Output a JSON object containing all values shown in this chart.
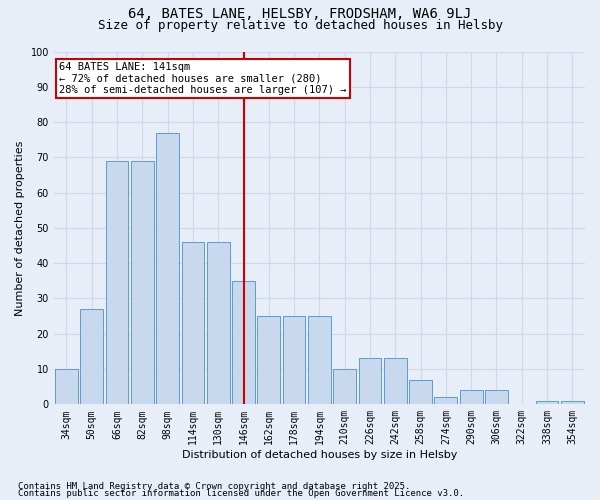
{
  "title": "64, BATES LANE, HELSBY, FRODSHAM, WA6 9LJ",
  "subtitle": "Size of property relative to detached houses in Helsby",
  "xlabel": "Distribution of detached houses by size in Helsby",
  "ylabel": "Number of detached properties",
  "categories": [
    "34sqm",
    "50sqm",
    "66sqm",
    "82sqm",
    "98sqm",
    "114sqm",
    "130sqm",
    "146sqm",
    "162sqm",
    "178sqm",
    "194sqm",
    "210sqm",
    "226sqm",
    "242sqm",
    "258sqm",
    "274sqm",
    "290sqm",
    "306sqm",
    "322sqm",
    "338sqm",
    "354sqm"
  ],
  "values": [
    10,
    27,
    69,
    69,
    77,
    46,
    46,
    35,
    25,
    25,
    25,
    10,
    13,
    13,
    7,
    2,
    4,
    4,
    0,
    1,
    1
  ],
  "bar_color": "#c9d9ed",
  "bar_edge_color": "#5b9bd5",
  "vline_index": 7,
  "annotation_line_label": "64 BATES LANE: 141sqm",
  "annotation_text1": "← 72% of detached houses are smaller (280)",
  "annotation_text2": "28% of semi-detached houses are larger (107) →",
  "annotation_box_color": "#ffffff",
  "annotation_box_edge": "#cc0000",
  "vline_color": "#cc0000",
  "grid_color": "#d0d8e8",
  "background_color": "#e8eef8",
  "ylim": [
    0,
    100
  ],
  "yticks": [
    0,
    10,
    20,
    30,
    40,
    50,
    60,
    70,
    80,
    90,
    100
  ],
  "footer1": "Contains HM Land Registry data © Crown copyright and database right 2025.",
  "footer2": "Contains public sector information licensed under the Open Government Licence v3.0.",
  "title_fontsize": 10,
  "subtitle_fontsize": 9,
  "axis_label_fontsize": 8,
  "tick_fontsize": 7,
  "annotation_fontsize": 7.5,
  "footer_fontsize": 6.5
}
